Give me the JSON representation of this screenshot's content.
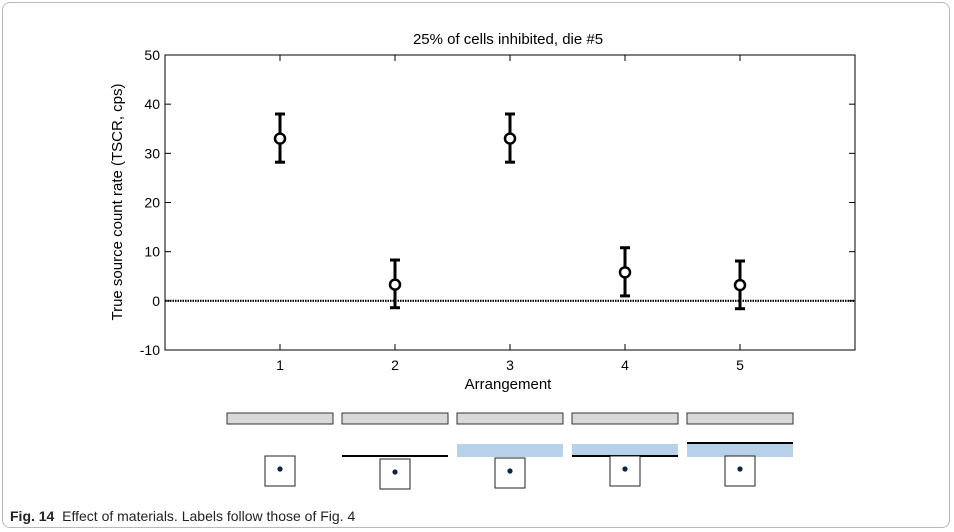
{
  "chart_data": {
    "type": "scatter",
    "title": "25% of cells inhibited, die #5",
    "xlabel": "Arrangement",
    "ylabel": "True source count rate (TSCR, cps)",
    "xlim": [
      0,
      6
    ],
    "ylim": [
      -10,
      50
    ],
    "xticks": [
      1,
      2,
      3,
      4,
      5
    ],
    "yticks": [
      -10,
      0,
      10,
      20,
      30,
      40,
      50
    ],
    "grid": false,
    "reference_line": 0,
    "points": [
      {
        "x": 1,
        "y": 33,
        "err_low": 28.2,
        "err_high": 38
      },
      {
        "x": 2,
        "y": 3.3,
        "err_low": -1.4,
        "err_high": 8.3
      },
      {
        "x": 3,
        "y": 33,
        "err_low": 28.2,
        "err_high": 38
      },
      {
        "x": 4,
        "y": 5.8,
        "err_low": 1,
        "err_high": 10.8
      },
      {
        "x": 5,
        "y": 3.2,
        "err_low": -1.6,
        "err_high": 8.1
      }
    ],
    "arrangements": [
      {
        "index": 1,
        "black_line": false,
        "blue_band": false
      },
      {
        "index": 2,
        "black_line": true,
        "blue_band": false
      },
      {
        "index": 3,
        "black_line": false,
        "blue_band": true
      },
      {
        "index": 4,
        "black_line": true,
        "blue_band": true
      },
      {
        "index": 5,
        "black_line": true,
        "blue_band": true,
        "line_above_band": true
      }
    ]
  },
  "colors": {
    "gray_bar": "#d9d9d9",
    "blue_band": "#b8d1ea",
    "marker": "#000000",
    "dot": "#0b2545"
  },
  "caption": {
    "label": "Fig. 14",
    "text": "Effect of materials. Labels follow those of Fig. 4"
  }
}
